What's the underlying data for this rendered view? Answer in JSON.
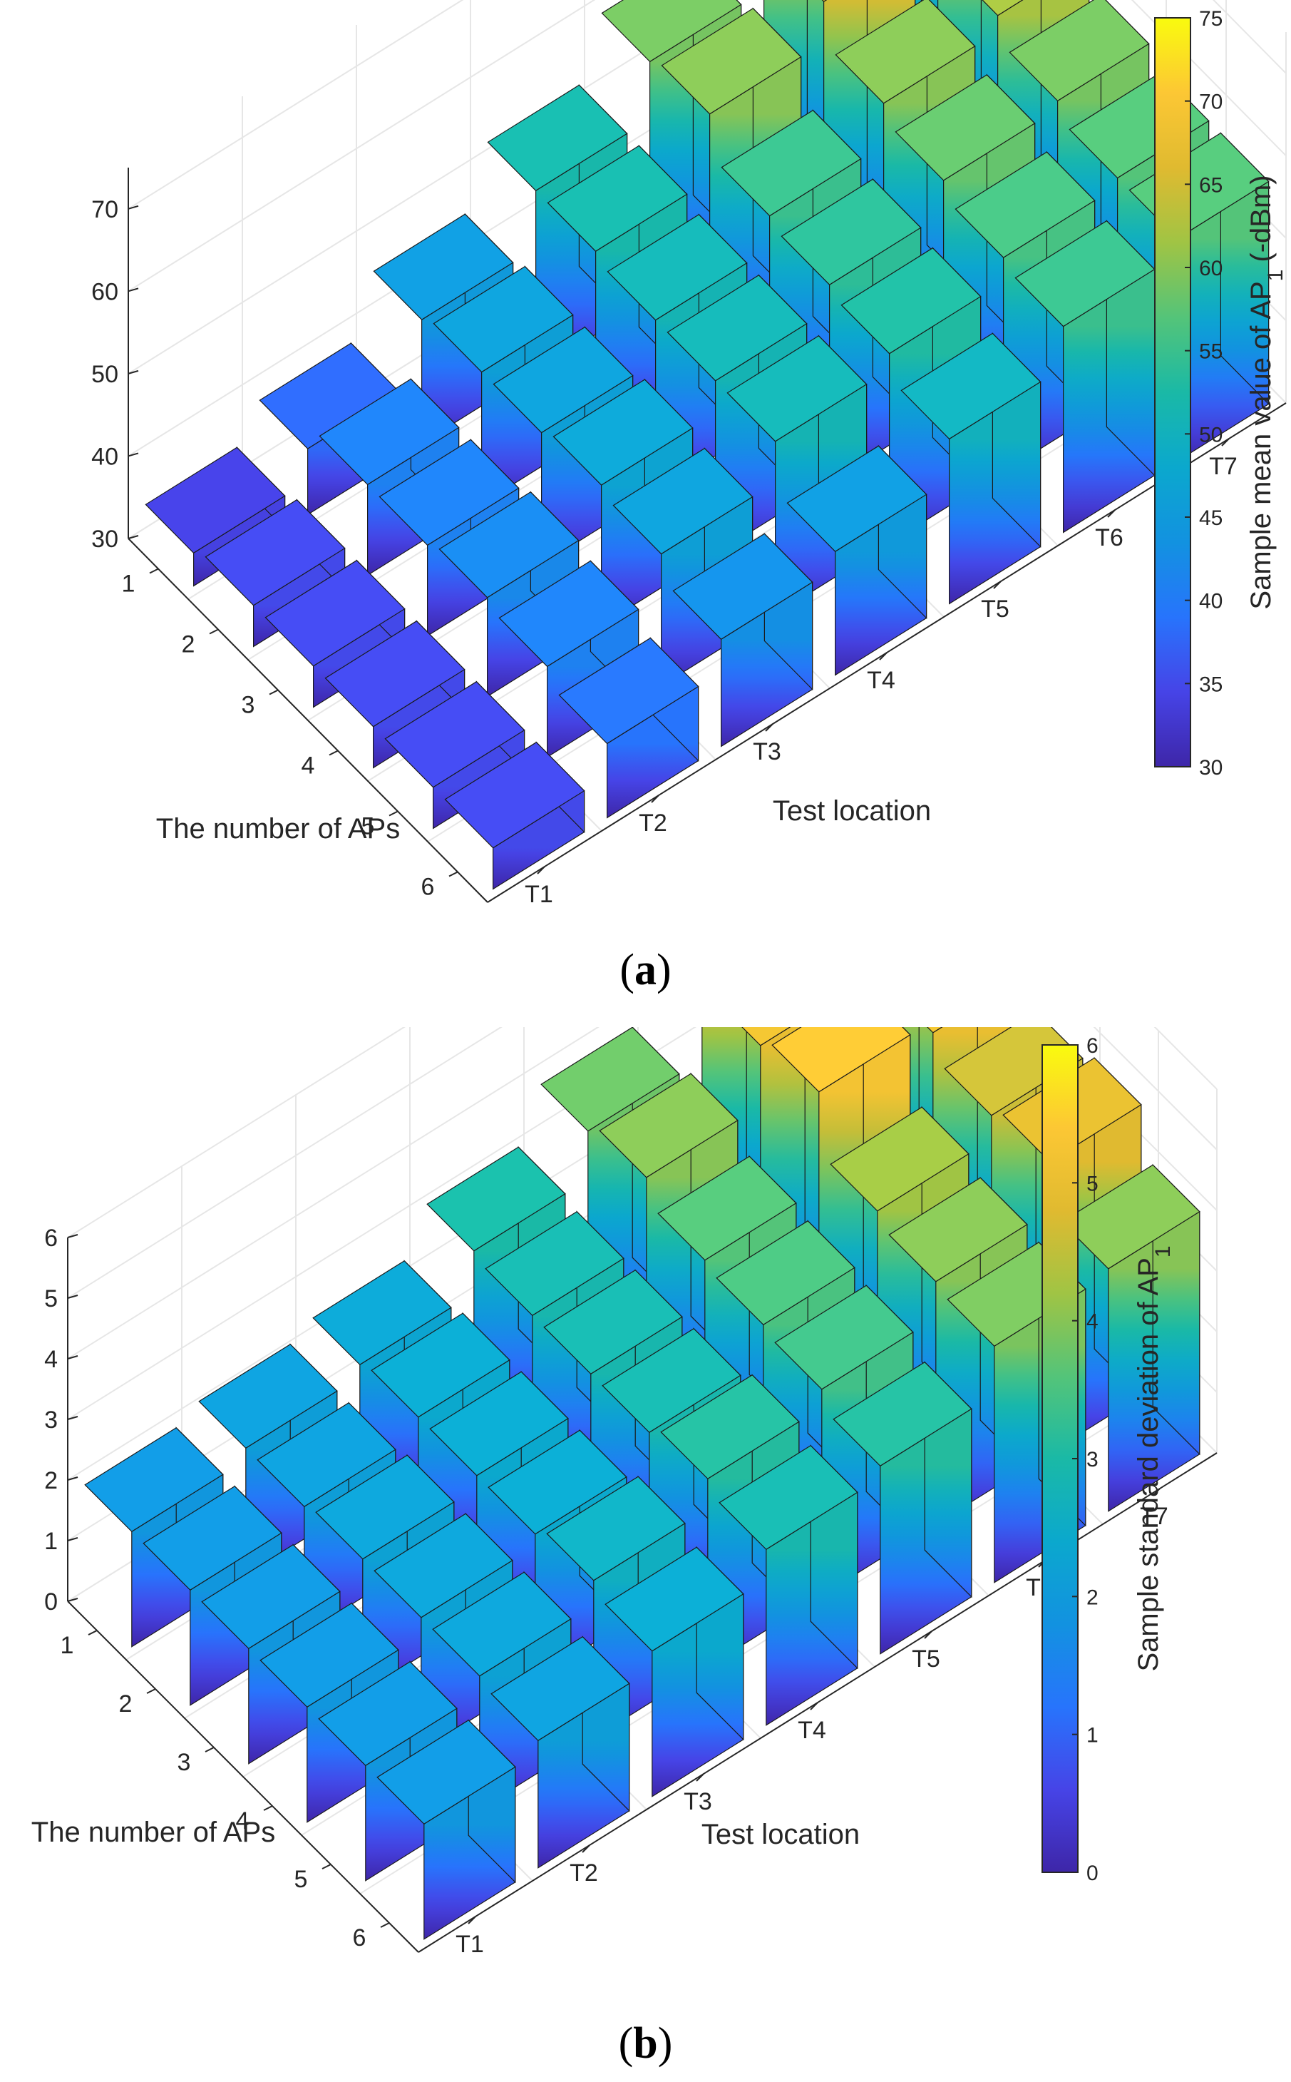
{
  "chart_data": [
    {
      "type": "bar3d",
      "panel_label": "a",
      "xlabel": "Test location",
      "ylabel": "The number of APs",
      "colorbar_label": "Sample mean value of AP",
      "colorbar_label_sub": "1",
      "colorbar_label_unit": "(-dBm)",
      "x_categories": [
        "T1",
        "T2",
        "T3",
        "T4",
        "T5",
        "T6",
        "T7"
      ],
      "y_categories": [
        "1",
        "2",
        "3",
        "4",
        "5",
        "6"
      ],
      "z_ticks": [
        30,
        40,
        50,
        60,
        70
      ],
      "z_range": [
        30,
        75
      ],
      "colorbar_ticks": [
        30,
        35,
        40,
        45,
        50,
        55,
        60,
        65,
        70,
        75
      ],
      "colorbar_range": [
        30,
        75
      ],
      "grid": true,
      "values": [
        [
          34,
          38,
          45,
          52,
          59,
          71,
          76
        ],
        [
          35,
          41,
          46,
          52,
          60,
          65,
          69
        ],
        [
          35,
          41,
          46,
          51,
          55,
          60,
          62
        ],
        [
          35,
          42,
          47,
          51,
          54,
          58,
          59
        ],
        [
          35,
          41,
          46,
          51,
          53,
          56,
          57
        ],
        [
          35,
          39,
          43,
          45,
          50,
          55,
          57
        ]
      ]
    },
    {
      "type": "bar3d",
      "panel_label": "b",
      "xlabel": "Test location",
      "ylabel": "The number of APs",
      "colorbar_label": "Sample standard deviation of AP",
      "colorbar_label_sub": "1",
      "colorbar_label_unit": "",
      "x_categories": [
        "T1",
        "T2",
        "T3",
        "T4",
        "T5",
        "T6",
        "T7"
      ],
      "y_categories": [
        "1",
        "2",
        "3",
        "4",
        "5",
        "6"
      ],
      "z_ticks": [
        0,
        1,
        2,
        3,
        4,
        5,
        6
      ],
      "z_range": [
        0,
        6
      ],
      "colorbar_ticks": [
        0,
        1,
        2,
        3,
        4,
        5,
        6
      ],
      "colorbar_range": [
        0,
        6
      ],
      "grid": true,
      "values": [
        [
          1.9,
          2.1,
          2.3,
          3.0,
          3.8,
          4.8,
          5.2
        ],
        [
          1.9,
          2.1,
          2.4,
          2.9,
          4.0,
          5.0,
          5.3
        ],
        [
          1.9,
          2.2,
          2.4,
          2.9,
          3.6,
          5.2,
          5.0
        ],
        [
          1.9,
          2.2,
          2.4,
          2.9,
          3.5,
          4.2,
          4.6
        ],
        [
          1.9,
          2.2,
          2.6,
          3.1,
          3.4,
          4.0,
          4.8
        ],
        [
          1.9,
          2.1,
          2.4,
          2.9,
          3.1,
          3.9,
          4.0
        ]
      ]
    }
  ]
}
